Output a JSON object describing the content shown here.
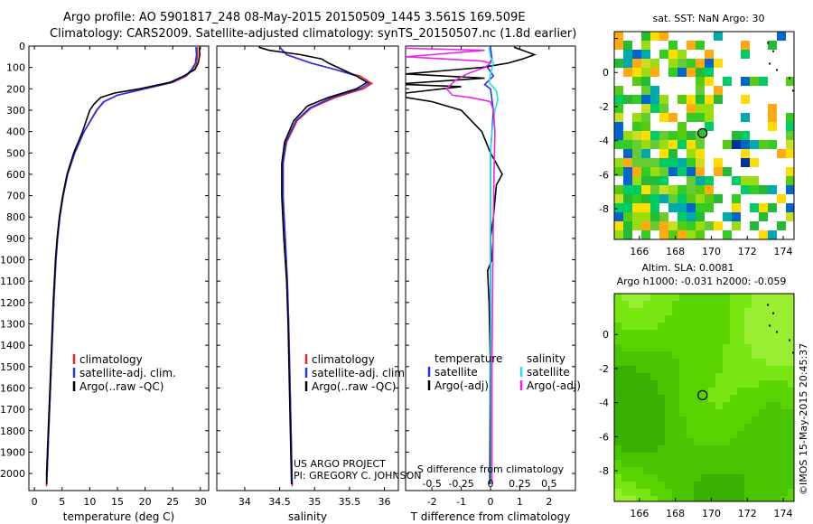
{
  "header": {
    "line1": "Argo profile: AO 5901817_248 08-May-2015 20150509_1445 3.561S 169.509E",
    "line2": "Climatology: CARS2009. Satellite-adjusted climatology: synTS_20150507.nc (1.8d earlier)"
  },
  "credits": {
    "line1": "US ARGO PROJECT",
    "line2": "PI: GREGORY C. JOHNSON"
  },
  "side_label": "©IMOS 15-May-2015 20:45:37",
  "colors": {
    "climatology": "#ee2020",
    "satellite_adj": "#2233ee",
    "argo": "#000000",
    "sat_salinity": "#22ddee",
    "argo_adj_salinity": "#ee22ee"
  },
  "chart_data": [
    {
      "id": "temperature",
      "type": "line",
      "xlabel": "temperature (deg C)",
      "ylabel": "",
      "xlim": [
        -1,
        31.5
      ],
      "ylim": [
        2080,
        0
      ],
      "x_ticks": [
        0,
        5,
        10,
        15,
        20,
        25,
        30
      ],
      "y_ticks": [
        0,
        100,
        200,
        300,
        400,
        500,
        600,
        700,
        800,
        900,
        1000,
        1100,
        1200,
        1300,
        1400,
        1500,
        1600,
        1700,
        1800,
        1900,
        2000
      ],
      "legend": [
        "climatology",
        "satellite-adj. clim.",
        "Argo(..raw -QC)"
      ],
      "series": [
        {
          "name": "climatology",
          "color": "#ee2020",
          "points": [
            [
              29.4,
              5
            ],
            [
              29.5,
              40
            ],
            [
              29.3,
              80
            ],
            [
              28.6,
              110
            ],
            [
              27.5,
              140
            ],
            [
              25.0,
              170
            ],
            [
              20.0,
              200
            ],
            [
              15.0,
              230
            ],
            [
              12.5,
              260
            ],
            [
              11.2,
              300
            ],
            [
              9.0,
              400
            ],
            [
              7.3,
              500
            ],
            [
              6.0,
              600
            ],
            [
              5.2,
              700
            ],
            [
              4.6,
              800
            ],
            [
              4.2,
              900
            ],
            [
              3.9,
              1000
            ],
            [
              3.5,
              1200
            ],
            [
              3.2,
              1400
            ],
            [
              2.9,
              1600
            ],
            [
              2.6,
              1800
            ],
            [
              2.3,
              2000
            ],
            [
              2.2,
              2060
            ]
          ]
        },
        {
          "name": "satellite-adj. clim.",
          "color": "#2233ee",
          "points": [
            [
              29.2,
              5
            ],
            [
              29.3,
              40
            ],
            [
              29.1,
              80
            ],
            [
              28.4,
              110
            ],
            [
              27.3,
              140
            ],
            [
              24.8,
              170
            ],
            [
              19.8,
              200
            ],
            [
              15.0,
              230
            ],
            [
              12.6,
              260
            ],
            [
              11.3,
              300
            ],
            [
              9.0,
              400
            ],
            [
              7.3,
              500
            ],
            [
              6.0,
              600
            ],
            [
              5.2,
              700
            ],
            [
              4.6,
              800
            ],
            [
              4.2,
              900
            ],
            [
              3.9,
              1000
            ],
            [
              3.5,
              1200
            ],
            [
              3.2,
              1400
            ],
            [
              2.9,
              1600
            ],
            [
              2.6,
              1800
            ],
            [
              2.3,
              2000
            ],
            [
              2.2,
              2050
            ]
          ]
        },
        {
          "name": "Argo(..raw -QC)",
          "color": "#000000",
          "points": [
            [
              29.8,
              5
            ],
            [
              29.9,
              40
            ],
            [
              29.6,
              80
            ],
            [
              29.0,
              110
            ],
            [
              27.0,
              140
            ],
            [
              24.5,
              170
            ],
            [
              19.0,
              200
            ],
            [
              14.5,
              220
            ],
            [
              12.0,
              240
            ],
            [
              10.8,
              270
            ],
            [
              10.0,
              300
            ],
            [
              8.7,
              400
            ],
            [
              7.1,
              500
            ],
            [
              5.9,
              600
            ],
            [
              5.1,
              700
            ],
            [
              4.5,
              800
            ],
            [
              4.1,
              900
            ],
            [
              3.8,
              1000
            ],
            [
              3.4,
              1200
            ],
            [
              3.1,
              1400
            ],
            [
              2.8,
              1600
            ],
            [
              2.5,
              1800
            ],
            [
              2.2,
              2000
            ],
            [
              2.2,
              2050
            ]
          ]
        }
      ]
    },
    {
      "id": "salinity",
      "type": "line",
      "xlabel": "salinity",
      "ylabel": "",
      "xlim": [
        33.6,
        36.2
      ],
      "ylim": [
        2080,
        0
      ],
      "x_ticks": [
        34,
        34.5,
        35,
        35.5,
        36
      ],
      "legend": [
        "climatology",
        "satellite-adj. clim.",
        "Argo(..raw -QC)"
      ],
      "series": [
        {
          "name": "climatology",
          "color": "#ee2020",
          "points": [
            [
              34.5,
              5
            ],
            [
              34.6,
              40
            ],
            [
              34.95,
              80
            ],
            [
              35.3,
              110
            ],
            [
              35.65,
              140
            ],
            [
              35.82,
              175
            ],
            [
              35.7,
              200
            ],
            [
              35.3,
              240
            ],
            [
              34.95,
              290
            ],
            [
              34.75,
              350
            ],
            [
              34.6,
              450
            ],
            [
              34.55,
              550
            ],
            [
              34.55,
              700
            ],
            [
              34.58,
              900
            ],
            [
              34.61,
              1100
            ],
            [
              34.63,
              1300
            ],
            [
              34.65,
              1600
            ],
            [
              34.68,
              2060
            ]
          ]
        },
        {
          "name": "satellite-adj. clim.",
          "color": "#2233ee",
          "points": [
            [
              34.5,
              5
            ],
            [
              34.6,
              40
            ],
            [
              34.95,
              80
            ],
            [
              35.3,
              110
            ],
            [
              35.6,
              140
            ],
            [
              35.78,
              175
            ],
            [
              35.65,
              200
            ],
            [
              35.25,
              240
            ],
            [
              34.93,
              290
            ],
            [
              34.73,
              350
            ],
            [
              34.59,
              450
            ],
            [
              34.55,
              550
            ],
            [
              34.55,
              700
            ],
            [
              34.58,
              900
            ],
            [
              34.61,
              1100
            ],
            [
              34.63,
              1300
            ],
            [
              34.65,
              1600
            ],
            [
              34.68,
              2050
            ]
          ]
        },
        {
          "name": "Argo(..raw -QC)",
          "color": "#000000",
          "points": [
            [
              34.2,
              5
            ],
            [
              34.35,
              20
            ],
            [
              34.8,
              40
            ],
            [
              35.1,
              60
            ],
            [
              35.2,
              80
            ],
            [
              35.4,
              110
            ],
            [
              35.6,
              140
            ],
            [
              35.75,
              170
            ],
            [
              35.6,
              200
            ],
            [
              35.2,
              240
            ],
            [
              34.9,
              280
            ],
            [
              34.7,
              350
            ],
            [
              34.57,
              450
            ],
            [
              34.53,
              550
            ],
            [
              34.53,
              700
            ],
            [
              34.56,
              900
            ],
            [
              34.6,
              1100
            ],
            [
              34.62,
              1300
            ],
            [
              34.64,
              1600
            ],
            [
              34.67,
              2050
            ]
          ]
        }
      ]
    },
    {
      "id": "difference",
      "type": "line",
      "xlabel_top": "S difference from climatology",
      "xlabel": "T difference from climatology",
      "ylabel": "",
      "xlim": [
        -2.9,
        2.9
      ],
      "ylim": [
        2080,
        0
      ],
      "x_ticks": [
        -2,
        -1,
        0,
        1,
        2
      ],
      "top_tick_labels": [
        "-0.5",
        "-0.25",
        "0",
        "0.25",
        "0.5"
      ],
      "legend": [
        "temperature",
        "satellite",
        "Argo(-adj)",
        "salinity",
        "satellite",
        "Argo(-adj)"
      ],
      "series": [
        {
          "name": "temperature satellite",
          "color": "#2233ee",
          "points": [
            [
              0.0,
              5
            ],
            [
              0.05,
              60
            ],
            [
              -0.1,
              100
            ],
            [
              0.1,
              140
            ],
            [
              -0.2,
              180
            ],
            [
              0.0,
              200
            ],
            [
              0.1,
              300
            ],
            [
              0.0,
              500
            ],
            [
              0.0,
              1000
            ],
            [
              -0.02,
              2050
            ]
          ]
        },
        {
          "name": "temperature Argo(-adj)",
          "color": "#000000",
          "points": [
            [
              0.8,
              5
            ],
            [
              1.1,
              20
            ],
            [
              1.5,
              40
            ],
            [
              1.1,
              60
            ],
            [
              0.6,
              80
            ],
            [
              -0.3,
              100
            ],
            [
              -2.9,
              130
            ],
            [
              -0.2,
              150
            ],
            [
              -2.9,
              175
            ],
            [
              -2.9,
              180
            ],
            [
              -1.0,
              190
            ],
            [
              -2.9,
              220
            ],
            [
              -2.9,
              240
            ],
            [
              -2.0,
              260
            ],
            [
              -1.0,
              300
            ],
            [
              -0.3,
              400
            ],
            [
              0.0,
              500
            ],
            [
              0.4,
              600
            ],
            [
              0.2,
              650
            ],
            [
              0.1,
              800
            ],
            [
              0.0,
              900
            ],
            [
              0.05,
              1000
            ],
            [
              -0.1,
              1050
            ],
            [
              -0.05,
              1200
            ],
            [
              0.0,
              1500
            ],
            [
              -0.02,
              2050
            ]
          ]
        },
        {
          "name": "salinity satellite",
          "color": "#22ddee",
          "points": [
            [
              -0.05,
              5
            ],
            [
              0.0,
              50
            ],
            [
              0.1,
              80
            ],
            [
              0.0,
              130
            ],
            [
              -0.05,
              170
            ],
            [
              0.2,
              210
            ],
            [
              0.25,
              250
            ],
            [
              0.15,
              300
            ],
            [
              0.05,
              400
            ],
            [
              0.0,
              500
            ],
            [
              0.0,
              1000
            ],
            [
              0.02,
              2050
            ]
          ]
        },
        {
          "name": "salinity Argo(-adj)",
          "color": "#ee22ee",
          "points": [
            [
              -2.9,
              10
            ],
            [
              -1.5,
              15
            ],
            [
              -0.2,
              20
            ],
            [
              -2.0,
              40
            ],
            [
              -2.9,
              50
            ],
            [
              -0.3,
              70
            ],
            [
              0.0,
              80
            ],
            [
              -0.2,
              100
            ],
            [
              -0.8,
              130
            ],
            [
              -1.2,
              160
            ],
            [
              -1.5,
              200
            ],
            [
              -1.3,
              230
            ],
            [
              -0.7,
              240
            ],
            [
              0.0,
              260
            ],
            [
              0.1,
              300
            ],
            [
              0.15,
              400
            ],
            [
              0.12,
              600
            ],
            [
              0.1,
              800
            ],
            [
              0.08,
              1000
            ],
            [
              0.05,
              1500
            ],
            [
              0.05,
              2050
            ]
          ]
        }
      ]
    },
    {
      "id": "sst_map",
      "type": "heatmap",
      "title": "sat. SST: NaN Argo: 30",
      "xlim": [
        164.6,
        174.6
      ],
      "ylim": [
        -9.8,
        2.4
      ],
      "x_ticks": [
        166,
        168,
        170,
        172,
        174
      ],
      "y_ticks": [
        2,
        0,
        -2,
        -4,
        -6,
        -8
      ],
      "x_tick_labels": [
        "166",
        "168",
        "170",
        "172",
        "174"
      ],
      "y_tick_labels": [
        "",
        "0",
        "-2",
        "-4",
        "-6",
        "-8"
      ],
      "marker": {
        "lon": 169.509,
        "lat": -3.561
      }
    },
    {
      "id": "sla_map",
      "type": "heatmap",
      "title": "Altim. SLA: 0.0081",
      "subtitle": "Argo h1000: -0.031 h2000: -0.059",
      "xlim": [
        164.6,
        174.6
      ],
      "ylim": [
        -9.8,
        2.4
      ],
      "x_ticks": [
        166,
        168,
        170,
        172,
        174
      ],
      "y_ticks": [
        0,
        -2,
        -4,
        -6,
        -8
      ],
      "x_tick_labels": [
        "166",
        "168",
        "170",
        "172",
        "174"
      ],
      "y_tick_labels": [
        "0",
        "-2",
        "-4",
        "-6",
        "-8"
      ],
      "marker": {
        "lon": 169.509,
        "lat": -3.561
      }
    }
  ]
}
